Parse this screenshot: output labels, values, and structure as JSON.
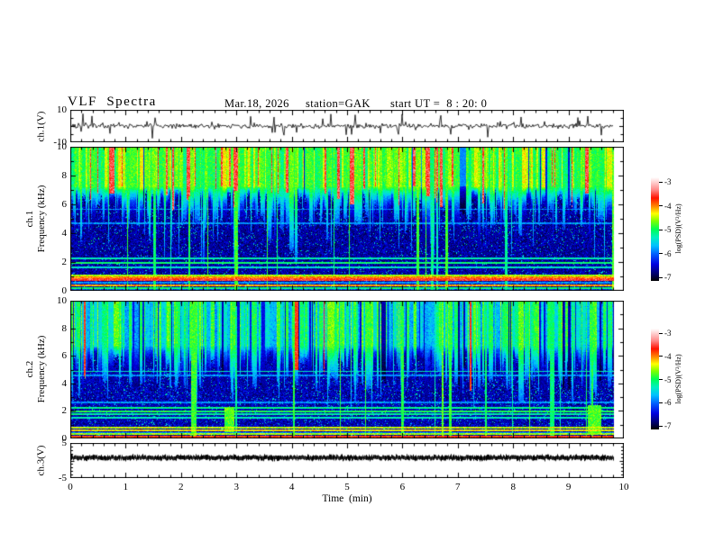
{
  "title": {
    "main": "VLF  Spectra",
    "date": "Mar.18, 2026",
    "station": "station=GAK",
    "start_ut": "start UT =  8 : 20: 0"
  },
  "x_axis": {
    "label": "Time  (min)",
    "tick_labels": [
      "0",
      "1",
      "2",
      "3",
      "4",
      "5",
      "6",
      "7",
      "8",
      "9",
      "10"
    ],
    "min": 0,
    "max": 10,
    "minor_per_major": 5,
    "data_end_min": 9.8
  },
  "panels": {
    "wave1": {
      "ylabel": "ch.1(V)",
      "ytick_labels": [
        "10",
        "-10"
      ],
      "ymax": 10,
      "ymin": -10
    },
    "spec1": {
      "ylabel_line1": "ch.1",
      "ylabel_line2": "Frequency  (kHz)",
      "ytick_labels": [
        "10",
        "8",
        "6",
        "4",
        "2",
        "0"
      ],
      "ymax": 10,
      "ymin": 0
    },
    "spec2": {
      "ylabel_line1": "ch.2",
      "ylabel_line2": "Frequency  (kHz)",
      "ytick_labels": [
        "10",
        "8",
        "6",
        "4",
        "2",
        "0"
      ],
      "ymax": 10,
      "ymin": 0
    },
    "wave3": {
      "ylabel": "ch.3(V)",
      "ytick_labels": [
        "5",
        "-5"
      ],
      "ymax": 5,
      "ymin": -5
    }
  },
  "colorbars": [
    {
      "unit": "log(PSD)(V²/Hz)",
      "tick_labels": [
        "-3",
        "-4",
        "-5",
        "-6",
        "-7"
      ],
      "zmax": -3,
      "zmin": -7
    },
    {
      "unit": "log(PSD)(V²/Hz)",
      "tick_labels": [
        "-3",
        "-4",
        "-5",
        "-6",
        "-7"
      ],
      "zmax": -3,
      "zmin": -7
    }
  ],
  "colormap": {
    "stops": [
      [
        0,
        "#000000"
      ],
      [
        0.06,
        "#000060"
      ],
      [
        0.16,
        "#0000e0"
      ],
      [
        0.26,
        "#0060ff"
      ],
      [
        0.34,
        "#00c0ff"
      ],
      [
        0.42,
        "#00f0c0"
      ],
      [
        0.5,
        "#00ff50"
      ],
      [
        0.58,
        "#80ff00"
      ],
      [
        0.65,
        "#ffff00"
      ],
      [
        0.72,
        "#ff8800"
      ],
      [
        0.8,
        "#ff1100"
      ],
      [
        0.88,
        "#ff8888"
      ],
      [
        1,
        "#ffffff"
      ]
    ]
  },
  "chart_data": [
    {
      "type": "line",
      "id": "ch1_waveform",
      "ylabel": "ch.1(V)",
      "ylim": [
        -10,
        10
      ],
      "xlim": [
        0,
        10
      ],
      "xlabel": "Time (min)",
      "data_end_min": 9.8,
      "description": "Broadband noise waveform centered on 0 V, typical amplitude ±2 V with frequent spikes reaching about ±8 V",
      "gen": {
        "seed": 12345,
        "base_amp": 1.5,
        "spike_prob": 0.06,
        "spike_amp": 5.5,
        "big_spike_prob": 0.012,
        "big_amp": 8.0
      }
    },
    {
      "type": "heatmap",
      "id": "ch1_spectrogram",
      "ylabel": "ch.1 Frequency (kHz)",
      "ylim": [
        0,
        10
      ],
      "xlim": [
        0,
        10
      ],
      "zlabel": "log(PSD)(V²/Hz)",
      "zlim": [
        -7,
        -3
      ],
      "description": "Strong broadband hiss above ~7 kHz (green/yellow with dense red vertical bursts) decaying to the noise floor (black/dark-blue speckle) below ~5 kHz; descending green tongues to 2-5 kHz; narrowband horizontal lines near 2.25, 1.95 and 1.6 kHz; intense red-orange band 0.6-1.1 kHz and yellow-orange line near 0.35 kHz",
      "gen": {
        "seed": 67890,
        "top_base": 0.58,
        "top_var": 0.16,
        "top_band_bottom": 7.3,
        "streak_coherence": 0.45,
        "red_streak_prob": 0.13,
        "red_streak_value": 0.84,
        "red_min": 5.6,
        "green_streak_prob": 0.55,
        "streak_value": 0.52,
        "deep_prob": 0.22,
        "deep_cut_min": 1.8,
        "deep_cut_range": 2.8,
        "cut_min": 4.3,
        "cut_range": 2.4,
        "dark_col_prob": 0.04,
        "speckle_base": 0.04,
        "speckle_noise": 0.14,
        "dot_prob": 0.05,
        "vline_prob": 0.03,
        "vline_value": 0.4,
        "hlines": [
          {
            "f": 5.7,
            "v": 0.28,
            "w": 0.08
          },
          {
            "f": 4.7,
            "v": 0.3,
            "w": 0.08
          },
          {
            "f": 2.25,
            "v": 0.42,
            "w": 0.1
          },
          {
            "f": 1.95,
            "v": 0.48,
            "w": 0.1
          },
          {
            "f": 1.62,
            "v": 0.4,
            "w": 0.1
          },
          {
            "f": 1.05,
            "v": 0.6,
            "w": 0.12
          },
          {
            "f": 0.9,
            "v": 0.72,
            "w": 0.15
          },
          {
            "f": 0.76,
            "v": 0.82,
            "w": 0.15
          },
          {
            "f": 0.55,
            "v": 0.3,
            "w": 0.1
          },
          {
            "f": 0.34,
            "v": 0.7,
            "w": 0.13
          },
          {
            "f": 0.18,
            "v": 0.48,
            "w": 0.12
          },
          {
            "f": 0.07,
            "v": 0.25,
            "w": 0.1
          }
        ],
        "special_vlines": [],
        "blobs": []
      }
    },
    {
      "type": "heatmap",
      "id": "ch2_spectrogram",
      "ylabel": "ch.2 Frequency (kHz)",
      "ylim": [
        0,
        10
      ],
      "xlim": [
        0,
        10
      ],
      "zlabel": "log(PSD)(V²/Hz)",
      "zlim": [
        -7,
        -3
      ],
      "description": "Cyan/blue hiss with green vertical streaks above ~6 kHz, dark noise floor below ~4 kHz; horizontal line near 4.9 kHz; cluster of cyan/green lines 1.5-2.2 kHz; bright yellow-green band 0.5-0.8 kHz; orange speckle near 0.3 kHz and red line near 0.1 kHz; one narrow red burst near t=7.2 min; green patches near t=2.9 and t=9.5 min",
      "gen": {
        "seed": 24680,
        "top_base": 0.36,
        "top_var": 0.12,
        "top_band_bottom": 6.8,
        "streak_coherence": 0.45,
        "red_streak_prob": 0.004,
        "red_streak_value": 0.8,
        "red_min": 3.0,
        "green_streak_prob": 0.5,
        "streak_value": 0.52,
        "deep_prob": 0.2,
        "deep_cut_min": 1.6,
        "deep_cut_range": 2.6,
        "cut_min": 3.4,
        "cut_range": 2.6,
        "dark_col_prob": 0.1,
        "speckle_base": 0.05,
        "speckle_noise": 0.15,
        "dot_prob": 0.06,
        "vline_prob": 0.04,
        "vline_value": 0.42,
        "hlines": [
          {
            "f": 4.9,
            "v": 0.42,
            "w": 0.1
          },
          {
            "f": 4.6,
            "v": 0.3,
            "w": 0.08
          },
          {
            "f": 2.6,
            "v": 0.3,
            "w": 0.08
          },
          {
            "f": 2.2,
            "v": 0.46,
            "w": 0.1
          },
          {
            "f": 1.95,
            "v": 0.5,
            "w": 0.1
          },
          {
            "f": 1.75,
            "v": 0.44,
            "w": 0.08
          },
          {
            "f": 1.5,
            "v": 0.42,
            "w": 0.08
          },
          {
            "f": 0.75,
            "v": 0.62,
            "w": 0.13
          },
          {
            "f": 0.55,
            "v": 0.66,
            "w": 0.14
          },
          {
            "f": 0.4,
            "v": 0.3,
            "w": 0.1
          },
          {
            "f": 0.28,
            "v": 0.6,
            "w": 0.12
          },
          {
            "f": 0.12,
            "v": 0.78,
            "w": 0.12
          }
        ],
        "special_vlines": [
          {
            "t": 7.2,
            "v": 0.8,
            "f1": 3.5,
            "f2": 10,
            "wt": 0.03
          }
        ],
        "blobs": [
          {
            "t": 2.85,
            "f1": 0.4,
            "f2": 2.3,
            "v": 0.55,
            "wt": 0.18
          },
          {
            "t": 9.45,
            "f1": 0.3,
            "f2": 2.4,
            "v": 0.55,
            "wt": 0.25
          }
        ]
      }
    },
    {
      "type": "line",
      "id": "ch3_waveform",
      "ylabel": "ch.3(V)",
      "ylim": [
        -5,
        5
      ],
      "xlim": [
        0,
        10
      ],
      "xlabel": "Time (min)",
      "data_end_min": 9.8,
      "description": "Nearly flat thick dark trace at about +0.8 V for the whole record",
      "gen": {
        "seed": 13579,
        "center": 0.8,
        "half_thickness_v": 0.55,
        "jitter": 0.3
      }
    }
  ]
}
